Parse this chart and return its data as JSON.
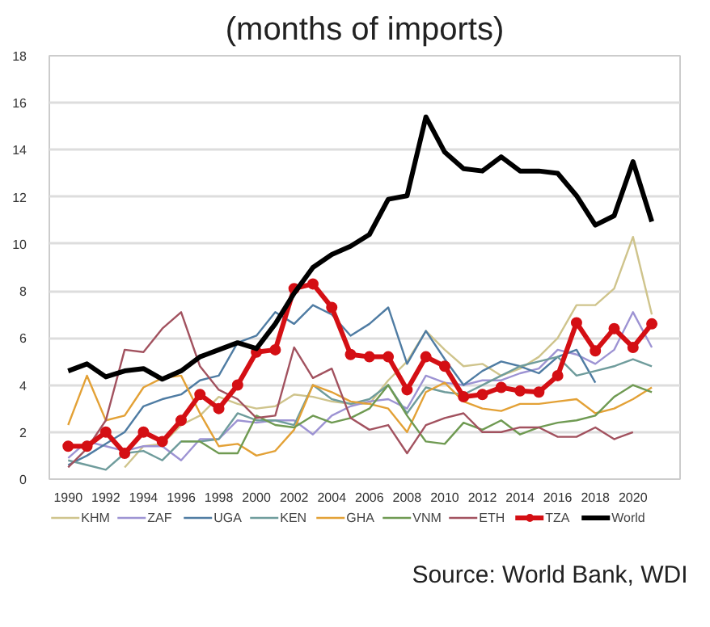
{
  "chart_data": {
    "type": "line",
    "title": "(months of imports)",
    "xlim": [
      1989,
      2022.5
    ],
    "xticks": [
      1990,
      1992,
      1994,
      1996,
      1998,
      2000,
      2002,
      2004,
      2006,
      2008,
      2010,
      2012,
      2014,
      2016,
      2018,
      2020
    ],
    "ylim": [
      0,
      18
    ],
    "yticks": [
      0,
      2,
      4,
      6,
      8,
      10,
      12,
      14,
      16,
      18
    ],
    "grid": "y",
    "legend": "bottom",
    "marker": "none",
    "annotations": [
      "Source: World Bank, WDI"
    ],
    "series": [
      {
        "name": "KHM",
        "color": "#cfc48c",
        "x": [
          1993,
          1994,
          1995,
          1996,
          1997,
          1998,
          1999,
          2000,
          2001,
          2002,
          2003,
          2004,
          2005,
          2006,
          2007,
          2008,
          2009,
          2010,
          2011,
          2012,
          2013,
          2014,
          2015,
          2016,
          2017,
          2018,
          2019,
          2020,
          2021
        ],
        "values": [
          0.5,
          1.4,
          1.5,
          2.3,
          2.7,
          3.5,
          3.2,
          3.0,
          3.1,
          3.6,
          3.5,
          3.3,
          3.2,
          3.2,
          4.2,
          5.0,
          6.3,
          5.5,
          4.8,
          4.9,
          4.4,
          4.7,
          5.2,
          6.0,
          7.4,
          7.4,
          8.1,
          10.3,
          7.0
        ]
      },
      {
        "name": "ZAF",
        "color": "#9d93d3",
        "x": [
          1990,
          1991,
          1992,
          1993,
          1994,
          1995,
          1996,
          1997,
          1998,
          1999,
          2000,
          2001,
          2002,
          2003,
          2004,
          2005,
          2006,
          2007,
          2008,
          2009,
          2010,
          2011,
          2012,
          2013,
          2014,
          2015,
          2016,
          2017,
          2018,
          2019,
          2020,
          2021
        ],
        "values": [
          0.9,
          1.6,
          1.4,
          1.2,
          1.4,
          1.4,
          0.8,
          1.7,
          1.7,
          2.5,
          2.4,
          2.5,
          2.5,
          1.9,
          2.7,
          3.1,
          3.3,
          3.4,
          3.0,
          4.4,
          4.1,
          4.0,
          4.2,
          4.2,
          4.5,
          4.7,
          5.5,
          5.3,
          4.9,
          5.5,
          7.1,
          5.6
        ]
      },
      {
        "name": "UGA",
        "color": "#4f7ca3",
        "x": [
          1990,
          1991,
          1992,
          1993,
          1994,
          1995,
          1996,
          1997,
          1998,
          1999,
          2000,
          2001,
          2002,
          2003,
          2004,
          2005,
          2006,
          2007,
          2008,
          2009,
          2010,
          2011,
          2012,
          2013,
          2014,
          2015,
          2016,
          2017,
          2018
        ],
        "values": [
          0.6,
          1.0,
          1.5,
          2.0,
          3.1,
          3.4,
          3.6,
          4.2,
          4.4,
          5.8,
          6.1,
          7.1,
          6.6,
          7.4,
          7.0,
          6.1,
          6.6,
          7.3,
          4.9,
          6.3,
          5.1,
          4.0,
          4.6,
          5.0,
          4.8,
          4.5,
          5.2,
          5.5,
          4.1
        ]
      },
      {
        "name": "KEN",
        "color": "#6f9c9c",
        "x": [
          1990,
          1991,
          1992,
          1993,
          1994,
          1995,
          1996,
          1997,
          1998,
          1999,
          2000,
          2001,
          2002,
          2003,
          2004,
          2005,
          2006,
          2007,
          2008,
          2009,
          2010,
          2011,
          2012,
          2013,
          2014,
          2015,
          2016,
          2017,
          2018,
          2019,
          2020,
          2021
        ],
        "values": [
          0.8,
          0.6,
          0.4,
          1.1,
          1.2,
          0.8,
          1.6,
          1.6,
          1.7,
          2.8,
          2.5,
          2.5,
          2.3,
          4.0,
          3.4,
          3.2,
          3.4,
          4.0,
          2.8,
          3.9,
          3.7,
          3.6,
          4.0,
          4.4,
          4.8,
          5.0,
          5.2,
          4.4,
          4.6,
          4.8,
          5.1,
          4.8
        ]
      },
      {
        "name": "GHA",
        "color": "#e3a136",
        "x": [
          1990,
          1991,
          1992,
          1993,
          1994,
          1995,
          1996,
          1997,
          1998,
          1999,
          2000,
          2001,
          2002,
          2003,
          2004,
          2005,
          2006,
          2007,
          2008,
          2009,
          2010,
          2011,
          2012,
          2013,
          2014,
          2015,
          2016,
          2017,
          2018,
          2019,
          2020,
          2021
        ],
        "values": [
          2.3,
          4.4,
          2.5,
          2.7,
          3.9,
          4.3,
          4.4,
          2.8,
          1.4,
          1.5,
          1.0,
          1.2,
          2.1,
          4.0,
          3.7,
          3.3,
          3.2,
          3.0,
          2.0,
          3.7,
          4.1,
          3.3,
          3.0,
          2.9,
          3.2,
          3.2,
          3.3,
          3.4,
          2.8,
          3.0,
          3.4,
          3.9
        ]
      },
      {
        "name": "VNM",
        "color": "#6f9a52",
        "x": [
          1996,
          1997,
          1998,
          1999,
          2000,
          2001,
          2002,
          2003,
          2004,
          2005,
          2006,
          2007,
          2008,
          2009,
          2010,
          2011,
          2012,
          2013,
          2014,
          2015,
          2016,
          2017,
          2018,
          2019,
          2020,
          2021
        ],
        "values": [
          1.6,
          1.6,
          1.1,
          1.1,
          2.7,
          2.3,
          2.2,
          2.7,
          2.4,
          2.6,
          3.0,
          4.0,
          2.7,
          1.6,
          1.5,
          2.4,
          2.1,
          2.5,
          1.9,
          2.2,
          2.4,
          2.5,
          2.7,
          3.5,
          4.0,
          3.7
        ]
      },
      {
        "name": "ETH",
        "color": "#a2525f",
        "x": [
          1990,
          1991,
          1992,
          1993,
          1994,
          1995,
          1996,
          1997,
          1998,
          1999,
          2000,
          2001,
          2002,
          2003,
          2004,
          2005,
          2006,
          2007,
          2008,
          2009,
          2010,
          2011,
          2012,
          2013,
          2014,
          2015,
          2016,
          2017,
          2018,
          2019,
          2020
        ],
        "values": [
          0.5,
          1.3,
          2.5,
          5.5,
          5.4,
          6.4,
          7.1,
          4.8,
          3.8,
          3.4,
          2.6,
          2.7,
          5.6,
          4.3,
          4.7,
          2.6,
          2.1,
          2.3,
          1.1,
          2.3,
          2.6,
          2.8,
          2.0,
          2.0,
          2.2,
          2.2,
          1.8,
          1.8,
          2.2,
          1.7,
          2.0
        ]
      },
      {
        "name": "TZA",
        "color": "#d40f14",
        "marker": "circle",
        "x": [
          1990,
          1991,
          1992,
          1993,
          1994,
          1995,
          1996,
          1997,
          1998,
          1999,
          2000,
          2001,
          2002,
          2003,
          2004,
          2005,
          2006,
          2007,
          2008,
          2009,
          2010,
          2011,
          2012,
          2013,
          2014,
          2015,
          2016,
          2017,
          2018,
          2019,
          2020,
          2021
        ],
        "values": [
          1.4,
          1.4,
          2.0,
          1.1,
          2.0,
          1.6,
          2.5,
          3.6,
          3.0,
          4.0,
          5.4,
          5.5,
          8.1,
          8.3,
          7.3,
          5.3,
          5.2,
          5.2,
          3.8,
          5.2,
          4.8,
          3.5,
          3.6,
          3.9,
          3.75,
          3.7,
          4.4,
          6.65,
          5.45,
          6.4,
          5.6,
          6.6
        ]
      },
      {
        "name": "World",
        "color": "#000000",
        "x": [
          1990,
          1991,
          1992,
          1993,
          1994,
          1995,
          1996,
          1997,
          1998,
          1999,
          2000,
          2001,
          2002,
          2003,
          2004,
          2005,
          2006,
          2007,
          2008,
          2009,
          2010,
          2011,
          2012,
          2013,
          2014,
          2015,
          2016,
          2017,
          2018,
          2019,
          2020,
          2021
        ],
        "values": [
          4.6,
          4.9,
          4.35,
          4.6,
          4.7,
          4.25,
          4.6,
          5.2,
          5.5,
          5.8,
          5.55,
          6.6,
          7.9,
          9.0,
          9.55,
          9.9,
          10.4,
          11.9,
          12.05,
          15.4,
          13.9,
          13.2,
          13.1,
          13.7,
          13.1,
          13.1,
          13.0,
          12.05,
          10.8,
          11.2,
          13.5,
          10.95
        ]
      }
    ]
  }
}
